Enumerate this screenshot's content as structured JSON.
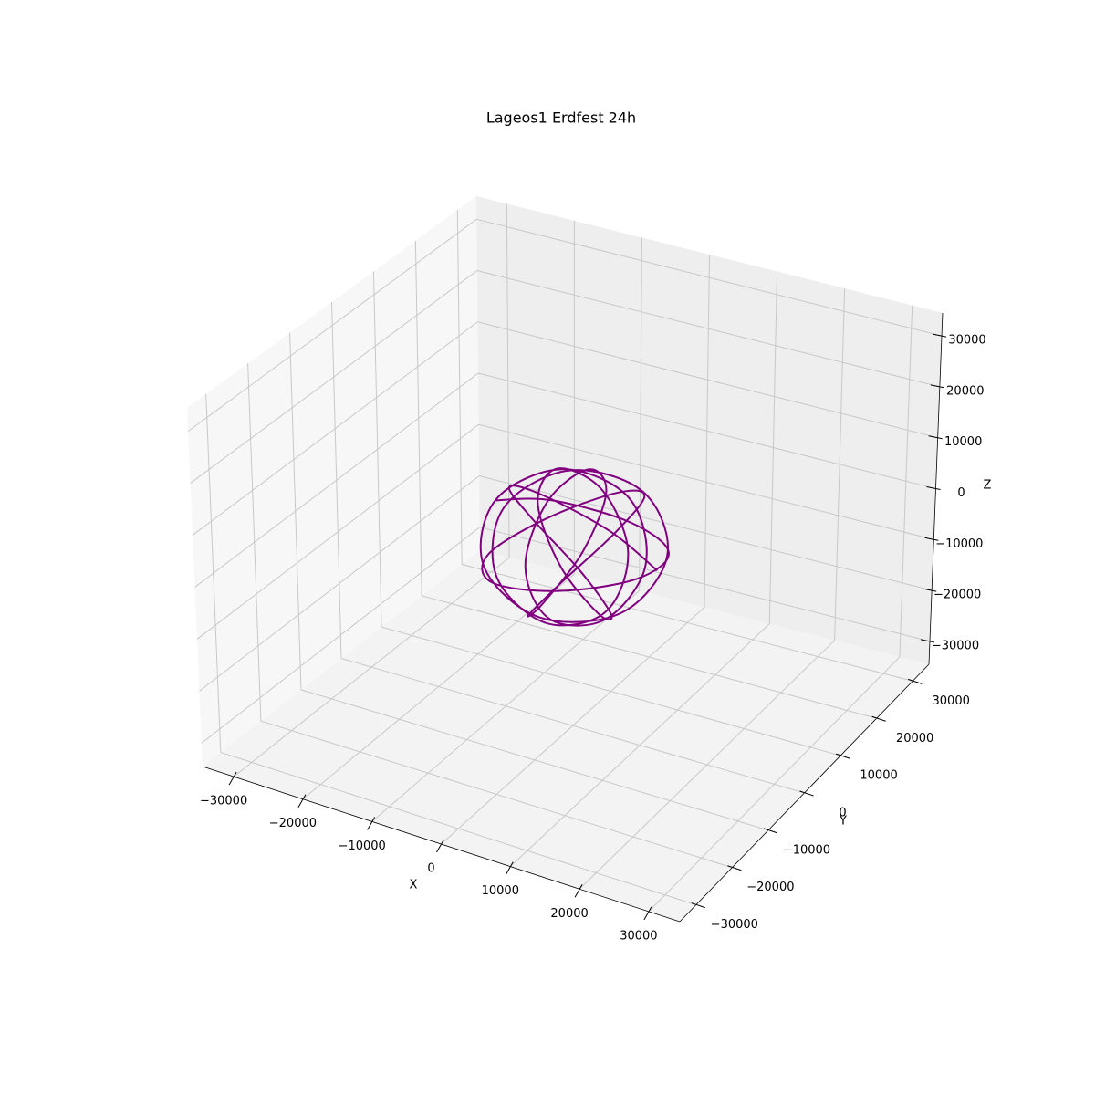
{
  "chart_data": {
    "type": "line3d",
    "title": "Lageos1 Erdfest 24h",
    "xlabel": "X",
    "ylabel": "Y",
    "zlabel": "Z",
    "color": "#800080",
    "grid": true,
    "xlim": [
      -34500,
      34500
    ],
    "ylim": [
      -34500,
      34500
    ],
    "zlim": [
      -34500,
      34500
    ],
    "xticks": [
      {
        "value": -30000,
        "label": "−30000"
      },
      {
        "value": -20000,
        "label": "−20000"
      },
      {
        "value": -10000,
        "label": "−10000"
      },
      0,
      10000,
      20000,
      30000
    ],
    "yticks": [
      {
        "value": -30000,
        "label": "−30000"
      },
      {
        "value": -20000,
        "label": "−20000"
      },
      {
        "value": -10000,
        "label": "−10000"
      },
      0,
      10000,
      20000,
      30000
    ],
    "zticks": [
      {
        "value": -30000,
        "label": "−30000"
      },
      {
        "value": -20000,
        "label": "−20000"
      },
      {
        "value": -10000,
        "label": "−10000"
      },
      0,
      10000,
      20000,
      30000
    ],
    "x": [
      12300,
      7750,
      -2320,
      -10140,
      -9980,
      -2660,
      5520,
      8200,
      4140,
      -2240,
      -5110,
      -2440,
      2470,
      4320,
      890,
      -4710,
      -6820,
      -2540,
      5290,
      10080,
      7150,
      -1980,
      -10410,
      -11360,
      -3800,
      6570,
      11850,
      8250,
      -980,
      -8430,
      -8700,
      -2530,
      4270,
      6090,
      2270,
      -2810,
      -4000,
      -230,
      4560,
      5150,
      80,
      -6630,
      -8790,
      -3570,
      5560,
      11360,
      8760,
      -730,
      -9950
    ],
    "y": [
      0,
      -4170,
      -3710,
      1520,
      6770,
      6630,
      140,
      -7870,
      -10590,
      -5040,
      5000,
      11810,
      9950,
      730,
      -8760,
      -11360,
      -5560,
      3570,
      8790,
      6630,
      -80,
      -5150,
      -4560,
      230,
      4000,
      2810,
      -2270,
      -6090,
      -4270,
      2530,
      8700,
      8430,
      980,
      -8250,
      -11850,
      -6570,
      3800,
      11360,
      10410,
      1980,
      -7150,
      -10080,
      -5290,
      2540,
      6820,
      4710,
      -890,
      -4320,
      -2470
    ],
    "z": [
      0,
      8590,
      11500,
      6800,
      -2400,
      -10010,
      -11000,
      -4700,
      4700,
      11000,
      10010,
      2400,
      -6800,
      -11500,
      -8590,
      0,
      8590,
      11500,
      6800,
      -2400,
      -10010,
      -11000,
      -4700,
      4700,
      11000,
      10010,
      2400,
      -6800,
      -11500,
      -8590,
      0,
      8590,
      11500,
      6800,
      -2400,
      -10010,
      -11000,
      -4700,
      4700,
      11000,
      10010,
      2400,
      -6800,
      -11500,
      -8590,
      0,
      8590,
      11500,
      6800
    ]
  }
}
